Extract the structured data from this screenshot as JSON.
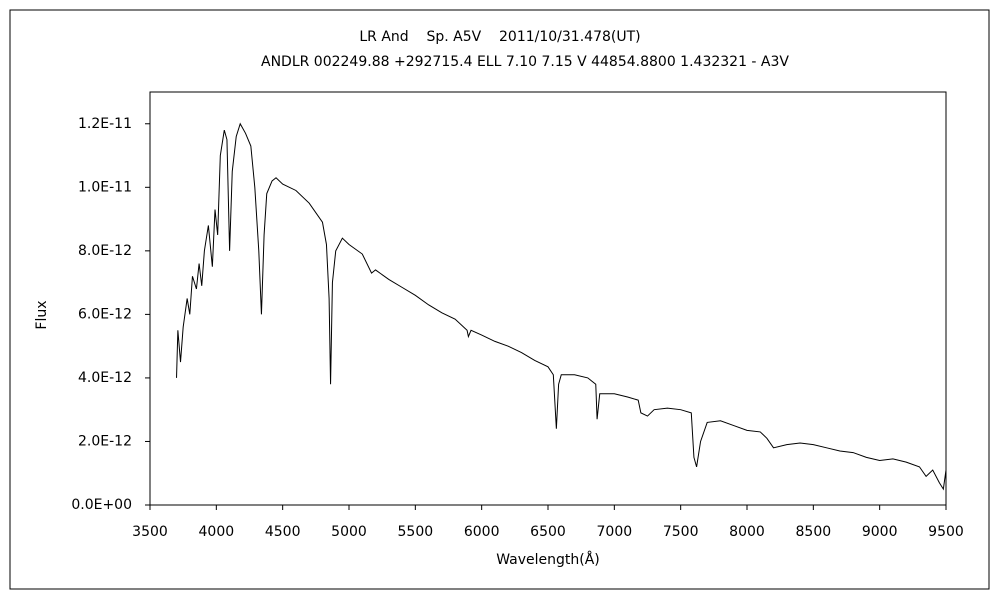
{
  "chart_data": {
    "type": "line",
    "title": "LR And    Sp. A5V    2011/10/31.478(UT)",
    "subtitle": "ANDLR 002249.88 +292715.4 ELL 7.10 7.15 V 44854.8800 1.432321 - A3V",
    "x_label": "Wavelength(Å)",
    "y_label": "Flux",
    "color": "#000000",
    "x": [
      3700,
      3710,
      3730,
      3750,
      3780,
      3800,
      3820,
      3850,
      3870,
      3890,
      3910,
      3940,
      3970,
      3990,
      4010,
      4030,
      4060,
      4080,
      4100,
      4120,
      4150,
      4180,
      4220,
      4260,
      4290,
      4320,
      4340,
      4360,
      4380,
      4420,
      4450,
      4500,
      4600,
      4700,
      4800,
      4830,
      4850,
      4861,
      4875,
      4900,
      4950,
      5000,
      5100,
      5170,
      5200,
      5300,
      5400,
      5500,
      5600,
      5700,
      5800,
      5890,
      5900,
      5920,
      6000,
      6100,
      6200,
      6300,
      6400,
      6500,
      6540,
      6563,
      6580,
      6600,
      6700,
      6800,
      6860,
      6870,
      6890,
      7000,
      7100,
      7180,
      7200,
      7250,
      7300,
      7400,
      7500,
      7580,
      7600,
      7620,
      7650,
      7700,
      7800,
      7900,
      8000,
      8100,
      8150,
      8200,
      8300,
      8400,
      8500,
      8600,
      8700,
      8800,
      8900,
      9000,
      9100,
      9200,
      9300,
      9350,
      9400,
      9450,
      9480,
      9500
    ],
    "values": [
      4e-12,
      5.5e-12,
      4.5e-12,
      5.6e-12,
      6.5e-12,
      6e-12,
      7.2e-12,
      6.8e-12,
      7.6e-12,
      6.9e-12,
      8e-12,
      8.8e-12,
      7.5e-12,
      9.3e-12,
      8.5e-12,
      1.1e-11,
      1.18e-11,
      1.15e-11,
      8e-12,
      1.05e-11,
      1.16e-11,
      1.2e-11,
      1.17e-11,
      1.13e-11,
      1e-11,
      8e-12,
      6e-12,
      8.5e-12,
      9.8e-12,
      1.02e-11,
      1.03e-11,
      1.01e-11,
      9.9e-12,
      9.5e-12,
      8.9e-12,
      8.2e-12,
      6.5e-12,
      3.8e-12,
      7e-12,
      8e-12,
      8.4e-12,
      8.2e-12,
      7.9e-12,
      7.3e-12,
      7.4e-12,
      7.1e-12,
      6.85e-12,
      6.6e-12,
      6.3e-12,
      6.05e-12,
      5.85e-12,
      5.5e-12,
      5.3e-12,
      5.5e-12,
      5.35e-12,
      5.15e-12,
      5e-12,
      4.8e-12,
      4.55e-12,
      4.35e-12,
      4.1e-12,
      2.4e-12,
      3.8e-12,
      4.1e-12,
      4.1e-12,
      4e-12,
      3.8e-12,
      2.7e-12,
      3.5e-12,
      3.5e-12,
      3.4e-12,
      3.3e-12,
      2.9e-12,
      2.8e-12,
      3e-12,
      3.05e-12,
      3e-12,
      2.9e-12,
      1.5e-12,
      1.2e-12,
      2e-12,
      2.6e-12,
      2.65e-12,
      2.5e-12,
      2.35e-12,
      2.3e-12,
      2.1e-12,
      1.8e-12,
      1.9e-12,
      1.95e-12,
      1.9e-12,
      1.8e-12,
      1.7e-12,
      1.65e-12,
      1.5e-12,
      1.4e-12,
      1.45e-12,
      1.35e-12,
      1.2e-12,
      9e-13,
      1.1e-12,
      7e-13,
      5e-13,
      1.1e-12
    ],
    "xlim": [
      3500,
      9500
    ],
    "xticks": [
      3500,
      4000,
      4500,
      5000,
      5500,
      6000,
      6500,
      7000,
      7500,
      8000,
      8500,
      9000,
      9500
    ],
    "ylim": [
      0,
      1.3e-11
    ],
    "yticks": [
      {
        "value": 0,
        "label": "0.0E+00"
      },
      {
        "value": 2e-12,
        "label": "2.0E-12"
      },
      {
        "value": 4e-12,
        "label": "4.0E-12"
      },
      {
        "value": 6e-12,
        "label": "6.0E-12"
      },
      {
        "value": 8e-12,
        "label": "8.0E-12"
      },
      {
        "value": 1e-11,
        "label": "1.0E-11"
      },
      {
        "value": 1.2e-11,
        "label": "1.2E-11"
      }
    ],
    "grid": false
  }
}
